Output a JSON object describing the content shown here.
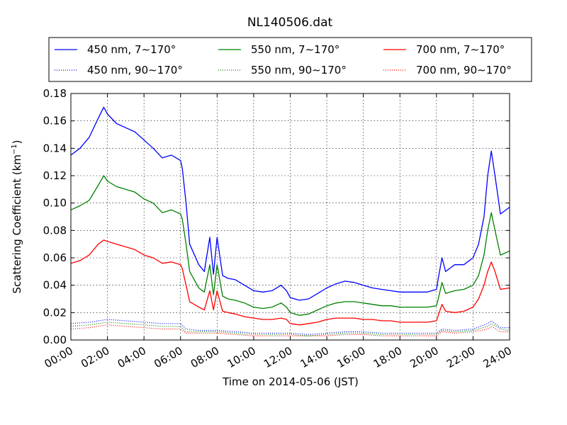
{
  "chart_data": {
    "type": "line",
    "title": "NL140506.dat",
    "xlabel": "Time on 2014-05-06 (JST)",
    "ylabel": "Scattering Coefficient (km",
    "ylabel_sup": "−1",
    "ylabel_close": ")",
    "xlim": [
      0,
      24
    ],
    "ylim": [
      0,
      0.18
    ],
    "grid": true,
    "legend_position": "top",
    "x_ticks": [
      0,
      2,
      4,
      6,
      8,
      10,
      12,
      14,
      16,
      18,
      20,
      22,
      24
    ],
    "x_tick_labels": [
      "00:00",
      "02:00",
      "04:00",
      "06:00",
      "08:00",
      "10:00",
      "12:00",
      "14:00",
      "16:00",
      "18:00",
      "20:00",
      "22:00",
      "24:00"
    ],
    "y_ticks": [
      0,
      0.02,
      0.04,
      0.06,
      0.08,
      0.1,
      0.12,
      0.14,
      0.16,
      0.18
    ],
    "y_tick_labels": [
      "0.00",
      "0.02",
      "0.04",
      "0.06",
      "0.08",
      "0.10",
      "0.12",
      "0.14",
      "0.16",
      "0.18"
    ],
    "series": [
      {
        "name": "450 nm, 7∼170°",
        "color": "#0000ff",
        "style": "solid",
        "x": [
          0,
          0.5,
          1,
          1.5,
          1.8,
          2,
          2.5,
          3,
          3.5,
          4,
          4.5,
          5,
          5.5,
          6,
          6.1,
          6.3,
          6.5,
          7,
          7.3,
          7.6,
          7.8,
          8,
          8.3,
          8.6,
          9,
          9.5,
          10,
          10.5,
          11,
          11.5,
          11.8,
          12,
          12.5,
          13,
          13.5,
          14,
          14.5,
          15,
          15.5,
          16,
          16.5,
          17,
          17.5,
          18,
          18.5,
          19,
          19.5,
          20,
          20.1,
          20.3,
          20.5,
          21,
          21.5,
          22,
          22.3,
          22.6,
          22.8,
          23,
          23.2,
          23.5,
          24
        ],
        "y": [
          0.135,
          0.14,
          0.148,
          0.162,
          0.17,
          0.165,
          0.158,
          0.155,
          0.152,
          0.146,
          0.14,
          0.133,
          0.135,
          0.131,
          0.125,
          0.1,
          0.07,
          0.055,
          0.05,
          0.075,
          0.048,
          0.075,
          0.047,
          0.045,
          0.044,
          0.04,
          0.036,
          0.035,
          0.036,
          0.04,
          0.036,
          0.031,
          0.029,
          0.03,
          0.034,
          0.038,
          0.041,
          0.043,
          0.042,
          0.04,
          0.038,
          0.037,
          0.036,
          0.035,
          0.035,
          0.035,
          0.035,
          0.037,
          0.045,
          0.06,
          0.05,
          0.055,
          0.055,
          0.06,
          0.07,
          0.09,
          0.12,
          0.138,
          0.12,
          0.092,
          0.097
        ]
      },
      {
        "name": "550 nm, 7∼170°",
        "color": "#008000",
        "style": "solid",
        "x": [
          0,
          0.5,
          1,
          1.5,
          1.8,
          2,
          2.5,
          3,
          3.5,
          4,
          4.5,
          5,
          5.5,
          6,
          6.1,
          6.3,
          6.5,
          7,
          7.3,
          7.6,
          7.8,
          8,
          8.3,
          8.6,
          9,
          9.5,
          10,
          10.5,
          11,
          11.5,
          11.8,
          12,
          12.5,
          13,
          13.5,
          14,
          14.5,
          15,
          15.5,
          16,
          16.5,
          17,
          17.5,
          18,
          18.5,
          19,
          19.5,
          20,
          20.1,
          20.3,
          20.5,
          21,
          21.5,
          22,
          22.3,
          22.6,
          22.8,
          23,
          23.2,
          23.5,
          24
        ],
        "y": [
          0.095,
          0.098,
          0.102,
          0.113,
          0.12,
          0.116,
          0.112,
          0.11,
          0.108,
          0.103,
          0.1,
          0.093,
          0.095,
          0.092,
          0.088,
          0.07,
          0.05,
          0.038,
          0.035,
          0.055,
          0.033,
          0.055,
          0.032,
          0.03,
          0.029,
          0.027,
          0.024,
          0.023,
          0.024,
          0.027,
          0.024,
          0.02,
          0.018,
          0.019,
          0.022,
          0.025,
          0.027,
          0.028,
          0.028,
          0.027,
          0.026,
          0.025,
          0.025,
          0.024,
          0.024,
          0.024,
          0.024,
          0.025,
          0.03,
          0.042,
          0.034,
          0.036,
          0.037,
          0.04,
          0.047,
          0.062,
          0.08,
          0.093,
          0.08,
          0.062,
          0.065
        ]
      },
      {
        "name": "700 nm, 7∼170°",
        "color": "#ff0000",
        "style": "solid",
        "x": [
          0,
          0.5,
          1,
          1.5,
          1.8,
          2,
          2.5,
          3,
          3.5,
          4,
          4.5,
          5,
          5.5,
          6,
          6.1,
          6.3,
          6.5,
          7,
          7.3,
          7.6,
          7.8,
          8,
          8.3,
          8.6,
          9,
          9.5,
          10,
          10.5,
          11,
          11.5,
          11.8,
          12,
          12.5,
          13,
          13.5,
          14,
          14.5,
          15,
          15.5,
          16,
          16.5,
          17,
          17.5,
          18,
          18.5,
          19,
          19.5,
          20,
          20.1,
          20.3,
          20.5,
          21,
          21.5,
          22,
          22.3,
          22.6,
          22.8,
          23,
          23.2,
          23.5,
          24
        ],
        "y": [
          0.056,
          0.058,
          0.062,
          0.07,
          0.073,
          0.072,
          0.07,
          0.068,
          0.066,
          0.062,
          0.06,
          0.056,
          0.057,
          0.055,
          0.052,
          0.04,
          0.028,
          0.024,
          0.022,
          0.036,
          0.022,
          0.036,
          0.021,
          0.02,
          0.019,
          0.017,
          0.016,
          0.015,
          0.015,
          0.016,
          0.015,
          0.012,
          0.011,
          0.012,
          0.013,
          0.015,
          0.016,
          0.016,
          0.016,
          0.015,
          0.015,
          0.014,
          0.014,
          0.013,
          0.013,
          0.013,
          0.013,
          0.014,
          0.018,
          0.026,
          0.021,
          0.02,
          0.021,
          0.024,
          0.03,
          0.04,
          0.05,
          0.057,
          0.05,
          0.037,
          0.038
        ]
      },
      {
        "name": "450 nm, 90∼170°",
        "color": "#0000ff",
        "style": "dotted",
        "x": [
          0,
          1,
          2,
          3,
          4,
          5,
          6,
          6.3,
          7,
          8,
          9,
          10,
          11,
          12,
          13,
          14,
          15,
          16,
          17,
          18,
          19,
          20,
          20.3,
          21,
          22,
          22.8,
          23,
          23.5,
          24
        ],
        "y": [
          0.012,
          0.013,
          0.015,
          0.014,
          0.013,
          0.012,
          0.012,
          0.008,
          0.007,
          0.007,
          0.006,
          0.005,
          0.005,
          0.005,
          0.004,
          0.005,
          0.006,
          0.006,
          0.005,
          0.005,
          0.005,
          0.005,
          0.008,
          0.007,
          0.008,
          0.012,
          0.014,
          0.009,
          0.009
        ]
      },
      {
        "name": "550 nm, 90∼170°",
        "color": "#008000",
        "style": "dotted",
        "x": [
          0,
          1,
          2,
          3,
          4,
          5,
          6,
          6.3,
          7,
          8,
          9,
          10,
          11,
          12,
          13,
          14,
          15,
          16,
          17,
          18,
          19,
          20,
          20.3,
          21,
          22,
          22.8,
          23,
          23.5,
          24
        ],
        "y": [
          0.01,
          0.011,
          0.013,
          0.012,
          0.011,
          0.01,
          0.01,
          0.006,
          0.006,
          0.006,
          0.005,
          0.004,
          0.004,
          0.004,
          0.003,
          0.004,
          0.005,
          0.005,
          0.004,
          0.004,
          0.004,
          0.004,
          0.007,
          0.006,
          0.007,
          0.01,
          0.012,
          0.008,
          0.007
        ]
      },
      {
        "name": "700 nm, 90∼170°",
        "color": "#ff0000",
        "style": "dotted",
        "x": [
          0,
          1,
          2,
          3,
          4,
          5,
          6,
          6.3,
          7,
          8,
          9,
          10,
          11,
          12,
          13,
          14,
          15,
          16,
          17,
          18,
          19,
          20,
          20.3,
          21,
          22,
          22.8,
          23,
          23.5,
          24
        ],
        "y": [
          0.008,
          0.009,
          0.011,
          0.01,
          0.009,
          0.008,
          0.008,
          0.005,
          0.005,
          0.005,
          0.004,
          0.003,
          0.003,
          0.003,
          0.003,
          0.003,
          0.004,
          0.004,
          0.003,
          0.003,
          0.003,
          0.003,
          0.006,
          0.005,
          0.006,
          0.008,
          0.01,
          0.006,
          0.006
        ]
      }
    ]
  }
}
